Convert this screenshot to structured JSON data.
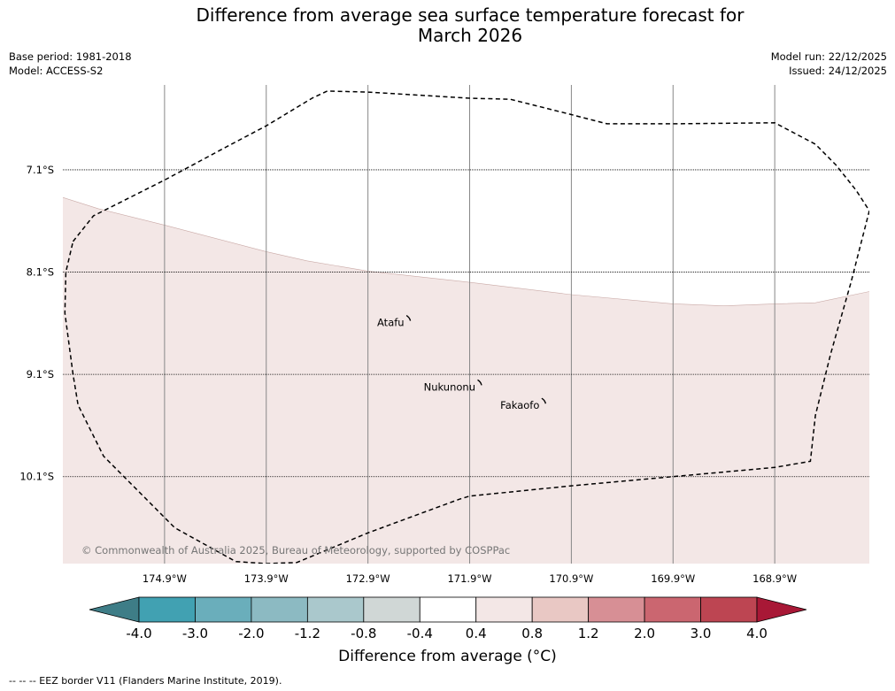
{
  "title": {
    "line1": "Difference from average sea surface temperature forecast for",
    "line2": "March 2026"
  },
  "meta": {
    "base_period": "Base period: 1981-2018",
    "model": "Model: ACCESS-S2",
    "model_run": "Model run: 22/12/2025",
    "issued": "Issued: 24/12/2025"
  },
  "map": {
    "lon_range": [
      -175.9,
      -167.97
    ],
    "lat_range": [
      -6.27,
      -10.95
    ],
    "lat_gridlines": [
      {
        "value": -7.1,
        "label": "7.1°S"
      },
      {
        "value": -8.1,
        "label": "8.1°S"
      },
      {
        "value": -9.1,
        "label": "9.1°S"
      },
      {
        "value": -10.1,
        "label": "10.1°S"
      }
    ],
    "lon_gridlines": [
      {
        "value": -174.9,
        "label": "174.9°W"
      },
      {
        "value": -173.9,
        "label": "173.9°W"
      },
      {
        "value": -172.9,
        "label": "172.9°W"
      },
      {
        "value": -171.9,
        "label": "171.9°W"
      },
      {
        "value": -170.9,
        "label": "170.9°W"
      },
      {
        "value": -169.9,
        "label": "169.9°W"
      },
      {
        "value": -168.9,
        "label": "168.9°W"
      }
    ],
    "anomaly_region": {
      "description": "0.4 to 0.8 °C above average",
      "color": "#f3e7e6",
      "edge_color": "#c9a9a6",
      "boundary": [
        [
          -175.9,
          -7.37
        ],
        [
          -175.55,
          -7.48
        ],
        [
          -174.9,
          -7.64
        ],
        [
          -173.9,
          -7.9
        ],
        [
          -173.5,
          -7.99
        ],
        [
          -172.9,
          -8.09
        ],
        [
          -171.9,
          -8.2
        ],
        [
          -170.9,
          -8.32
        ],
        [
          -169.9,
          -8.41
        ],
        [
          -169.4,
          -8.43
        ],
        [
          -168.9,
          -8.41
        ],
        [
          -168.5,
          -8.4
        ],
        [
          -167.97,
          -8.29
        ]
      ]
    },
    "eez_border": {
      "color": "#000000",
      "points": [
        [
          -175.8,
          -7.8
        ],
        [
          -175.6,
          -7.55
        ],
        [
          -174.9,
          -7.2
        ],
        [
          -174.3,
          -6.88
        ],
        [
          -173.9,
          -6.67
        ],
        [
          -173.45,
          -6.4
        ],
        [
          -173.3,
          -6.33
        ],
        [
          -172.9,
          -6.34
        ],
        [
          -171.9,
          -6.4
        ],
        [
          -171.5,
          -6.41
        ],
        [
          -170.9,
          -6.56
        ],
        [
          -170.55,
          -6.65
        ],
        [
          -169.9,
          -6.65
        ],
        [
          -168.9,
          -6.64
        ],
        [
          -168.5,
          -6.85
        ],
        [
          -168.3,
          -7.05
        ],
        [
          -168.1,
          -7.3
        ],
        [
          -167.97,
          -7.5
        ],
        [
          -168.15,
          -8.2
        ],
        [
          -168.35,
          -8.9
        ],
        [
          -168.5,
          -9.5
        ],
        [
          -168.55,
          -9.95
        ],
        [
          -168.9,
          -10.01
        ],
        [
          -169.9,
          -10.1
        ],
        [
          -170.9,
          -10.19
        ],
        [
          -171.9,
          -10.29
        ],
        [
          -172.0,
          -10.32
        ],
        [
          -172.9,
          -10.65
        ],
        [
          -173.6,
          -10.94
        ],
        [
          -173.9,
          -10.95
        ],
        [
          -174.2,
          -10.93
        ],
        [
          -174.8,
          -10.6
        ],
        [
          -175.5,
          -9.9
        ],
        [
          -175.75,
          -9.4
        ],
        [
          -175.8,
          -9.1
        ],
        [
          -175.88,
          -8.5
        ],
        [
          -175.87,
          -8.1
        ],
        [
          -175.8,
          -7.8
        ]
      ]
    },
    "atolls": [
      {
        "name": "Atafu",
        "lon": -172.5,
        "lat": -8.55
      },
      {
        "name": "Nukunonu",
        "lon": -171.8,
        "lat": -9.18
      },
      {
        "name": "Fakaofo",
        "lon": -171.17,
        "lat": -9.36
      }
    ],
    "copyright": "© Commonwealth of Australia 2025, Bureau of Meteorology, supported by COSPPac"
  },
  "colorbar": {
    "tick_labels": [
      "-4.0",
      "-3.0",
      "-2.0",
      "-1.2",
      "-0.8",
      "-0.4",
      "0.4",
      "0.8",
      "1.2",
      "2.0",
      "3.0",
      "4.0"
    ],
    "colors": [
      "#41a1b2",
      "#6aaebb",
      "#8cbac2",
      "#aac8cc",
      "#d0d7d6",
      "#ffffff",
      "#f3e7e6",
      "#e9c8c4",
      "#d78f95",
      "#cb6670",
      "#bd4552"
    ],
    "low_extend_color": "#3e7d87",
    "high_extend_color": "#a81836",
    "label": "Difference from average (°C)"
  },
  "footnote": "--  --  -- EEZ border V11 (Flanders Marine Institute, 2019)."
}
